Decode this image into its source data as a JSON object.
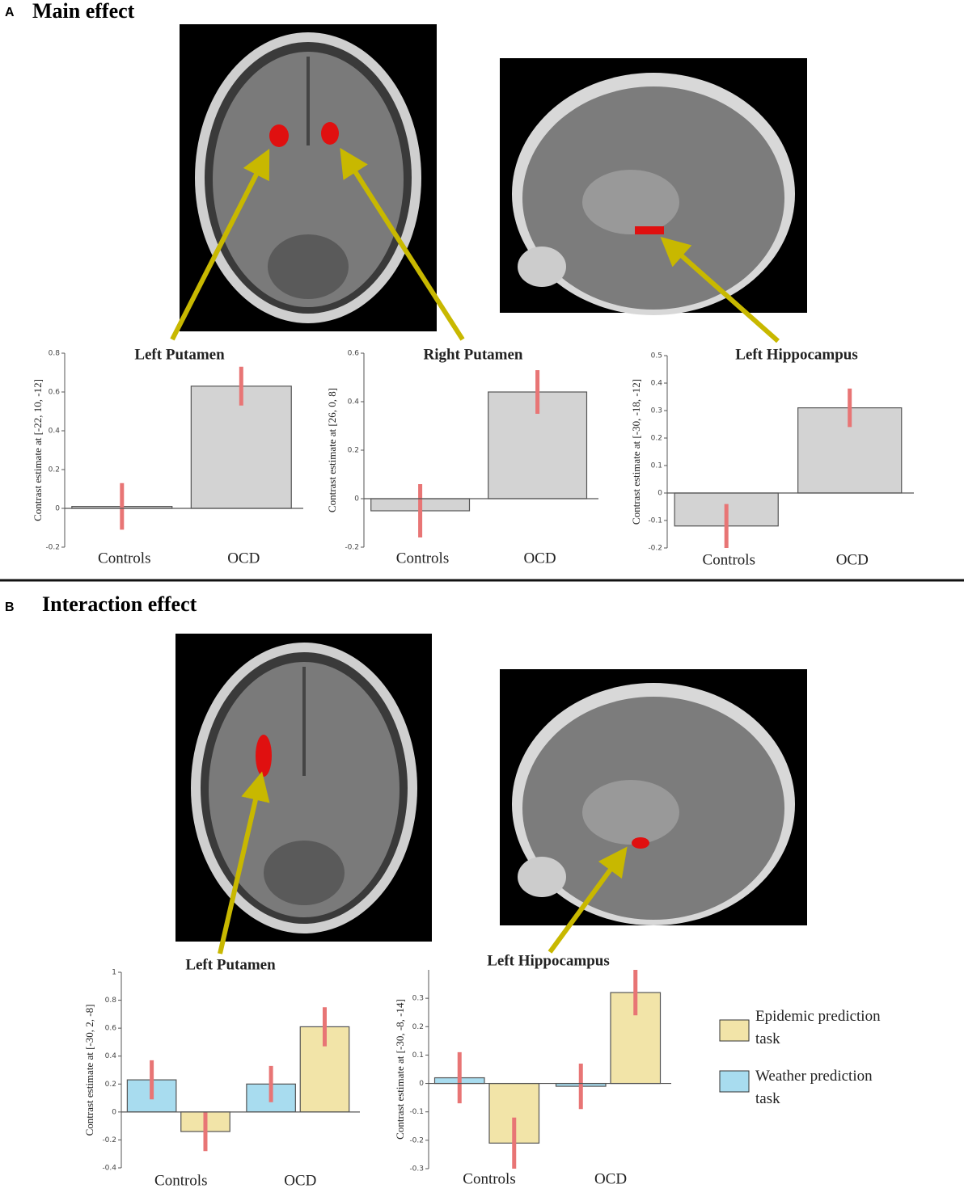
{
  "panels": [
    {
      "label": "A",
      "title": "Main effect"
    },
    {
      "label": "B",
      "title": "Interaction effect"
    }
  ],
  "chart_data": [
    {
      "type": "bar",
      "title": "Left Putamen",
      "y_label": "Contrast estimate at [-22, 10, -12]",
      "categories": [
        "Controls",
        "OCD"
      ],
      "values": [
        0.01,
        0.63
      ],
      "errors": [
        0.12,
        0.1
      ],
      "color": "#d3d3d3",
      "ylim": [
        -0.2,
        0.8
      ],
      "yticks": [
        -0.2,
        0,
        0.2,
        0.4,
        0.6,
        0.8
      ]
    },
    {
      "type": "bar",
      "title": "Right Putamen",
      "y_label": "Contrast estimate at [26, 0, 8]",
      "categories": [
        "Controls",
        "OCD"
      ],
      "values": [
        -0.05,
        0.44
      ],
      "errors": [
        0.11,
        0.09
      ],
      "color": "#d3d3d3",
      "ylim": [
        -0.2,
        0.6
      ],
      "yticks": [
        -0.2,
        0,
        0.2,
        0.4,
        0.6
      ]
    },
    {
      "type": "bar",
      "title": "Left Hippocampus",
      "y_label": "Contrast estimate at [-30, -18, -12]",
      "categories": [
        "Controls",
        "OCD"
      ],
      "values": [
        -0.12,
        0.31
      ],
      "errors": [
        0.08,
        0.07
      ],
      "color": "#d3d3d3",
      "ylim": [
        -0.2,
        0.5
      ],
      "yticks": [
        -0.2,
        -0.1,
        0,
        0.1,
        0.2,
        0.3,
        0.4,
        0.5
      ]
    },
    {
      "type": "grouped-bar",
      "title": "Left Putamen",
      "y_label": "Contrast estimate at [-30, 2, -8]",
      "categories": [
        "Controls",
        "OCD"
      ],
      "series": [
        {
          "name": "Epidemic prediction task",
          "color": "#f2e4a8",
          "values": [
            -0.14,
            0.61
          ],
          "errors": [
            0.14,
            0.14
          ]
        },
        {
          "name": "Weather prediction task",
          "color": "#a8dcef",
          "values": [
            0.23,
            0.2
          ],
          "errors": [
            0.14,
            0.13
          ]
        }
      ],
      "ylim": [
        -0.4,
        1
      ],
      "yticks": [
        -0.4,
        -0.2,
        0,
        0.2,
        0.4,
        0.6,
        0.8,
        1
      ]
    },
    {
      "type": "grouped-bar",
      "title": "Left Hippocampus",
      "y_label": "Contrast estimate at [-30, -8, -14]",
      "categories": [
        "Controls",
        "OCD"
      ],
      "series": [
        {
          "name": "Epidemic prediction task",
          "color": "#f2e4a8",
          "values": [
            -0.21,
            0.32
          ],
          "errors": [
            0.09,
            0.08
          ]
        },
        {
          "name": "Weather prediction task",
          "color": "#a8dcef",
          "values": [
            0.02,
            -0.01
          ],
          "errors": [
            0.09,
            0.08
          ]
        }
      ],
      "ylim": [
        -0.3,
        0.4
      ],
      "yticks": [
        -0.3,
        -0.2,
        -0.1,
        0,
        0.1,
        0.2,
        0.3
      ]
    }
  ]
}
